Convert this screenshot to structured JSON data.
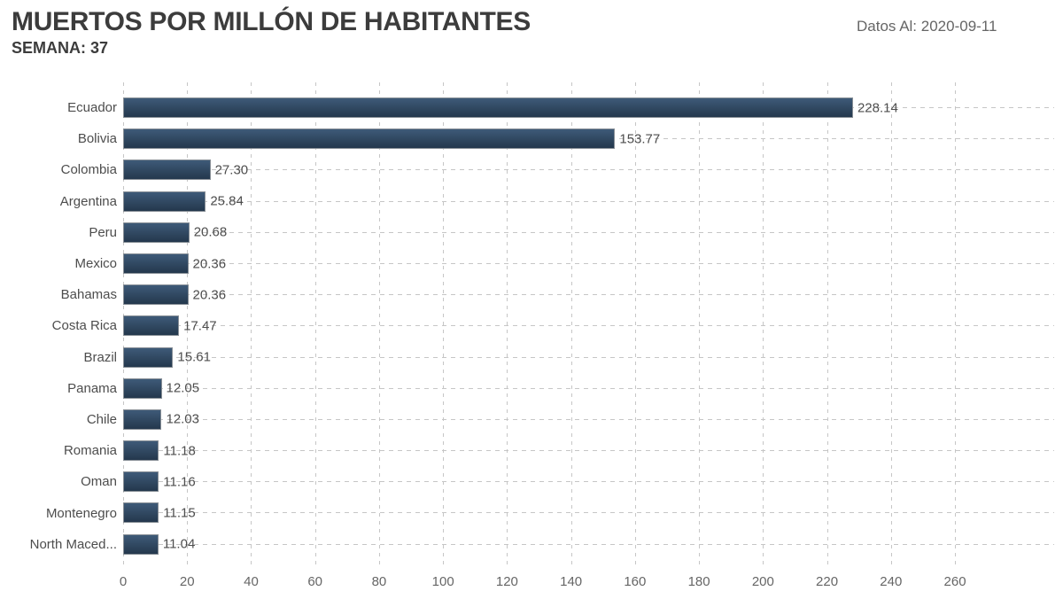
{
  "header": {
    "title": "MUERTOS POR MILLÓN DE HABITANTES",
    "subtitle": "SEMANA: 37",
    "data_as_of_label": "Datos Al: 2020-09-11"
  },
  "chart_data": {
    "type": "bar",
    "orientation": "horizontal",
    "title": "MUERTOS POR MILLÓN DE HABITANTES",
    "subtitle": "SEMANA: 37",
    "categories": [
      "Ecuador",
      "Bolivia",
      "Colombia",
      "Argentina",
      "Peru",
      "Mexico",
      "Bahamas",
      "Costa Rica",
      "Brazil",
      "Panama",
      "Chile",
      "Romania",
      "Oman",
      "Montenegro",
      "North Maced..."
    ],
    "values": [
      228.14,
      153.77,
      27.3,
      25.84,
      20.68,
      20.36,
      20.36,
      17.47,
      15.61,
      12.05,
      12.03,
      11.18,
      11.16,
      11.15,
      11.04
    ],
    "value_labels": [
      "228.14",
      "153.77",
      "27.30",
      "25.84",
      "20.68",
      "20.36",
      "20.36",
      "17.47",
      "15.61",
      "12.05",
      "12.03",
      "11.18",
      "11.16",
      "11.15",
      "11.04"
    ],
    "xlabel": "",
    "ylabel": "",
    "x_ticks": [
      0,
      20,
      40,
      60,
      80,
      100,
      120,
      140,
      160,
      180,
      200,
      220,
      240,
      260
    ],
    "xlim": [
      0,
      291
    ],
    "grid": true,
    "legend": "none",
    "colors": {
      "bar_top": "#3e5a78",
      "bar_bottom": "#24384d",
      "bar_border": "#888f96",
      "grid": "#c6c6c6",
      "label": "#4d4d4d",
      "tick": "#666666"
    }
  }
}
